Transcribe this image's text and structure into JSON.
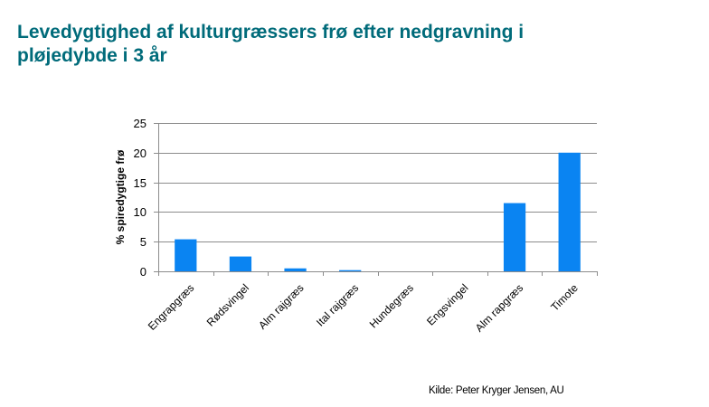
{
  "page": {
    "title": "Levedygtighed  af kulturgræssers frø efter nedgravning i\npløjedybde  i 3 år",
    "source": "Kilde: Peter Kryger Jensen, AU"
  },
  "colors": {
    "title": "#006b7a",
    "bar": "#0a84f2",
    "grid": "#8c8c8c",
    "axis": "#8c8c8c",
    "text": "#000000"
  },
  "chart_data": {
    "type": "bar",
    "title": "",
    "xlabel": "",
    "ylabel": "% spiredygtige frø",
    "ylim": [
      0,
      25
    ],
    "yticks": [
      0,
      5,
      10,
      15,
      20,
      25
    ],
    "grid": true,
    "categories": [
      "Engrapgræs",
      "Rødsvingel",
      "Alm rajgræs",
      "Ital rajgræs",
      "Hundegræs",
      "Engsvingel",
      "Alm rapgræs",
      "Timote"
    ],
    "values": [
      5.4,
      2.5,
      0.5,
      0.2,
      0,
      0,
      11.5,
      20
    ]
  }
}
